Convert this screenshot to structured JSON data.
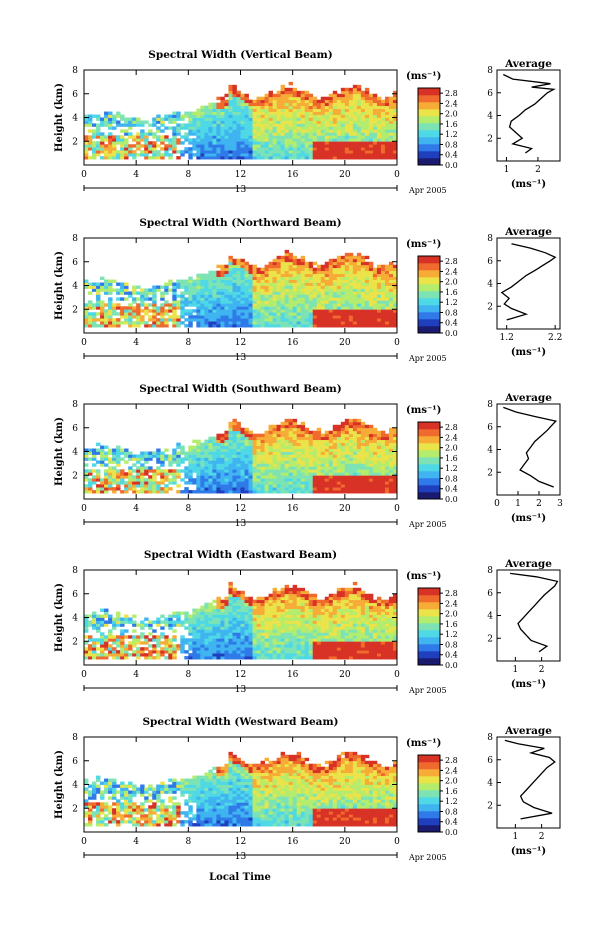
{
  "figure": {
    "date_label": "Apr 2005",
    "day_label": "13",
    "x_axis_title": "Local Time",
    "y_axis_title": "Height (km)",
    "colorbar_unit": "(ms⁻¹)",
    "profile_title": "Average",
    "profile_xlabel": "(ms⁻¹)",
    "colors": {
      "colormap": [
        "#1a1a6e",
        "#1f3fbf",
        "#2f7ae8",
        "#3fb4f0",
        "#4fd8e6",
        "#7de3b4",
        "#b4ec6e",
        "#eae34a",
        "#f6ac37",
        "#ef6a2c",
        "#d83226"
      ],
      "background": "#ffffff"
    }
  },
  "chart_data": [
    {
      "type": "heatmap",
      "title": "Spectral Width (Vertical Beam)",
      "xlabel": "",
      "ylabel": "Height (km)",
      "xlim": [
        0,
        24
      ],
      "ylim": [
        0,
        8
      ],
      "xticks": [
        "0",
        "4",
        "8",
        "12",
        "16",
        "20",
        "0"
      ],
      "yticks": [
        "2",
        "4",
        "6",
        "8"
      ],
      "colorbar_ticks": [
        "0.0",
        "0.4",
        "0.8",
        "1.2",
        "1.6",
        "2.0",
        "2.4",
        "2.8"
      ],
      "colorbar_range": [
        0,
        3
      ],
      "profile": {
        "xlim": [
          0.7,
          2.7
        ],
        "xticks": [
          "1",
          "2"
        ],
        "ylim": [
          0,
          8
        ],
        "yticks": [
          "2",
          "4",
          "6",
          "8"
        ],
        "x": [
          1.6,
          1.8,
          1.2,
          1.5,
          1.3,
          1.1,
          1.15,
          1.4,
          1.6,
          1.9,
          2.1,
          2.3,
          2.5,
          1.8,
          2.4,
          1.2,
          0.9
        ],
        "y": [
          0.7,
          1.1,
          1.5,
          2.0,
          2.5,
          3.0,
          3.5,
          4.0,
          4.5,
          5.0,
          5.5,
          6.0,
          6.3,
          6.5,
          6.8,
          7.2,
          7.6
        ]
      }
    },
    {
      "type": "heatmap",
      "title": "Spectral Width (Northward Beam)",
      "xlabel": "",
      "ylabel": "Height (km)",
      "xlim": [
        0,
        24
      ],
      "ylim": [
        0,
        8
      ],
      "xticks": [
        "0",
        "4",
        "8",
        "12",
        "16",
        "20",
        "0"
      ],
      "yticks": [
        "2",
        "4",
        "6",
        "8"
      ],
      "colorbar_ticks": [
        "0.0",
        "0.4",
        "0.8",
        "1.2",
        "1.6",
        "2.0",
        "2.4",
        "2.8"
      ],
      "colorbar_range": [
        0,
        3
      ],
      "profile": {
        "xlim": [
          1.0,
          2.3
        ],
        "xticks": [
          "1.2",
          "2.2"
        ],
        "ylim": [
          0,
          8
        ],
        "yticks": [
          "2",
          "4",
          "6",
          "8"
        ],
        "x": [
          1.2,
          1.6,
          1.3,
          1.15,
          1.25,
          1.1,
          1.3,
          1.45,
          1.6,
          1.8,
          1.95,
          2.1,
          2.2,
          2.0,
          1.7,
          1.3
        ],
        "y": [
          0.8,
          1.3,
          1.8,
          2.2,
          2.7,
          3.2,
          3.7,
          4.2,
          4.7,
          5.2,
          5.6,
          6.0,
          6.3,
          6.7,
          7.1,
          7.5
        ]
      }
    },
    {
      "type": "heatmap",
      "title": "Spectral Width (Southward Beam)",
      "xlabel": "",
      "ylabel": "Height (km)",
      "xlim": [
        0,
        24
      ],
      "ylim": [
        0,
        8
      ],
      "xticks": [
        "0",
        "4",
        "8",
        "12",
        "16",
        "20",
        "0"
      ],
      "yticks": [
        "2",
        "4",
        "6",
        "8"
      ],
      "colorbar_ticks": [
        "0.0",
        "0.4",
        "0.8",
        "1.2",
        "1.6",
        "2.0",
        "2.4",
        "2.8"
      ],
      "colorbar_range": [
        0,
        3
      ],
      "profile": {
        "xlim": [
          0,
          3
        ],
        "xticks": [
          "0",
          "1",
          "2",
          "3"
        ],
        "ylim": [
          0,
          8
        ],
        "yticks": [
          "2",
          "4",
          "6",
          "8"
        ],
        "x": [
          2.7,
          2.0,
          1.6,
          1.1,
          1.3,
          1.5,
          1.4,
          1.6,
          1.8,
          2.1,
          2.4,
          2.6,
          2.8,
          1.8,
          0.9,
          0.3
        ],
        "y": [
          0.7,
          1.2,
          1.7,
          2.2,
          2.7,
          3.2,
          3.7,
          4.2,
          4.7,
          5.2,
          5.7,
          6.1,
          6.5,
          6.9,
          7.3,
          7.7
        ]
      }
    },
    {
      "type": "heatmap",
      "title": "Spectral Width (Eastward Beam)",
      "xlabel": "",
      "ylabel": "Height (km)",
      "xlim": [
        0,
        24
      ],
      "ylim": [
        0,
        8
      ],
      "xticks": [
        "0",
        "4",
        "8",
        "12",
        "16",
        "20",
        "0"
      ],
      "yticks": [
        "2",
        "4",
        "6",
        "8"
      ],
      "colorbar_ticks": [
        "0.0",
        "0.4",
        "0.8",
        "1.2",
        "1.6",
        "2.0",
        "2.4",
        "2.8"
      ],
      "colorbar_range": [
        0,
        3
      ],
      "profile": {
        "xlim": [
          0.3,
          2.7
        ],
        "xticks": [
          "1",
          "2"
        ],
        "ylim": [
          0,
          8
        ],
        "yticks": [
          "2",
          "4",
          "6",
          "8"
        ],
        "x": [
          1.9,
          2.2,
          1.6,
          1.4,
          1.2,
          1.1,
          1.3,
          1.5,
          1.7,
          1.9,
          2.1,
          2.3,
          2.5,
          2.6,
          1.8,
          0.8
        ],
        "y": [
          0.8,
          1.3,
          1.8,
          2.3,
          2.8,
          3.3,
          3.8,
          4.3,
          4.8,
          5.3,
          5.8,
          6.2,
          6.6,
          7.0,
          7.4,
          7.7
        ]
      }
    },
    {
      "type": "heatmap",
      "title": "Spectral Width (Westward Beam)",
      "xlabel": "Local Time",
      "ylabel": "Height (km)",
      "xlim": [
        0,
        24
      ],
      "ylim": [
        0,
        8
      ],
      "xticks": [
        "0",
        "4",
        "8",
        "12",
        "16",
        "20",
        "0"
      ],
      "yticks": [
        "2",
        "4",
        "6",
        "8"
      ],
      "colorbar_ticks": [
        "0.0",
        "0.4",
        "0.8",
        "1.2",
        "1.6",
        "2.0",
        "2.4",
        "2.8"
      ],
      "colorbar_range": [
        0,
        3
      ],
      "profile": {
        "xlim": [
          0.3,
          2.7
        ],
        "xticks": [
          "1",
          "2"
        ],
        "ylim": [
          0,
          8
        ],
        "yticks": [
          "2",
          "4",
          "6",
          "8"
        ],
        "x": [
          1.2,
          2.4,
          1.7,
          1.3,
          1.2,
          1.4,
          1.6,
          1.8,
          2.0,
          2.2,
          2.5,
          2.3,
          1.6,
          2.1,
          1.1,
          0.6
        ],
        "y": [
          0.8,
          1.3,
          1.8,
          2.3,
          2.8,
          3.3,
          3.8,
          4.3,
          4.8,
          5.3,
          5.8,
          6.2,
          6.6,
          7.0,
          7.4,
          7.7
        ]
      }
    }
  ]
}
